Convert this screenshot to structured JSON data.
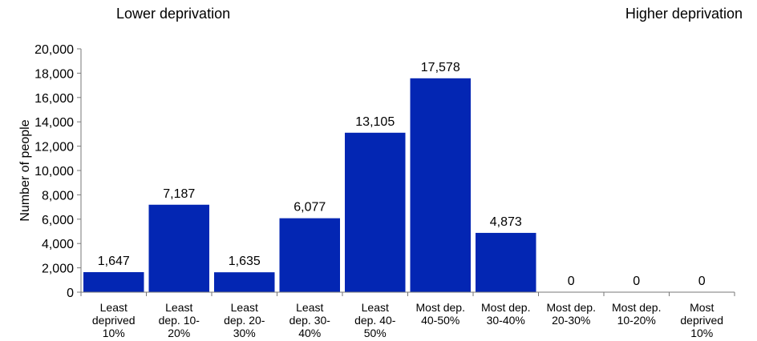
{
  "annotations": {
    "left": "Lower deprivation",
    "right": "Higher deprivation"
  },
  "chart_data": {
    "type": "bar",
    "title": "",
    "xlabel": "",
    "ylabel": "Number of people",
    "ylim": [
      0,
      20000
    ],
    "yticks": [
      0,
      2000,
      4000,
      6000,
      8000,
      10000,
      12000,
      14000,
      16000,
      18000,
      20000
    ],
    "ytick_labels": [
      "0",
      "2,000",
      "4,000",
      "6,000",
      "8,000",
      "10,000",
      "12,000",
      "14,000",
      "16,000",
      "18,000",
      "20,000"
    ],
    "categories": [
      [
        "Least",
        "deprived",
        "10%"
      ],
      [
        "Least",
        "dep. 10-",
        "20%"
      ],
      [
        "Least",
        "dep. 20-",
        "30%"
      ],
      [
        "Least",
        "dep. 30-",
        "40%"
      ],
      [
        "Least",
        "dep. 40-",
        "50%"
      ],
      [
        "Most dep.",
        "40-50%"
      ],
      [
        "Most dep.",
        "30-40%"
      ],
      [
        "Most dep.",
        "20-30%"
      ],
      [
        "Most dep.",
        "10-20%"
      ],
      [
        "Most",
        "deprived",
        "10%"
      ]
    ],
    "values": [
      1647,
      7187,
      1635,
      6077,
      13105,
      17578,
      4873,
      0,
      0,
      0
    ],
    "value_labels": [
      "1,647",
      "7,187",
      "1,635",
      "6,077",
      "13,105",
      "17,578",
      "4,873",
      "0",
      "0",
      "0"
    ],
    "bar_color": "#0326B3",
    "grid": false,
    "legend": "none"
  }
}
